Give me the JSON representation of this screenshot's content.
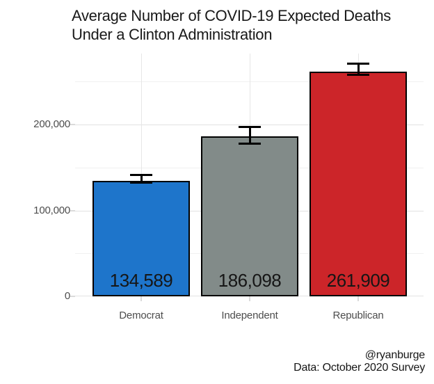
{
  "chart_data": {
    "type": "bar",
    "title": "Average Number of COVID-19 Expected Deaths Under a Clinton Administration",
    "title_lines": [
      "Average Number of COVID-19 Expected Deaths",
      "Under a Clinton Administration"
    ],
    "categories": [
      "Democrat",
      "Independent",
      "Republican"
    ],
    "values": [
      134589,
      186098,
      261909
    ],
    "value_labels": [
      "134,589",
      "186,098",
      "261,909"
    ],
    "bar_colors": [
      "#1E75CB",
      "#828B89",
      "#CC2529"
    ],
    "bar_border_color": "#000000",
    "error_bars": {
      "low": [
        132000,
        178000,
        258000
      ],
      "high": [
        141500,
        197000,
        271000
      ]
    },
    "xlabel": "",
    "ylabel": "",
    "y_axis": {
      "ticks": [
        0,
        100000,
        200000
      ],
      "tick_labels": [
        "0",
        "100,000",
        "200,000"
      ],
      "minor_ticks": [
        50000,
        150000,
        250000
      ],
      "ylim": [
        0,
        282600
      ]
    },
    "grid": true,
    "legend": false,
    "caption_lines": [
      "@ryanburge",
      "Data: October 2020 Survey"
    ],
    "colors": {
      "title_text": "#191919",
      "tick_label_text": "#4D4D4D",
      "value_label_text": "#161616",
      "grid_major": "#E2E2E2",
      "grid_minor": "#F0F0F0",
      "background": "#FFFFFF"
    }
  }
}
